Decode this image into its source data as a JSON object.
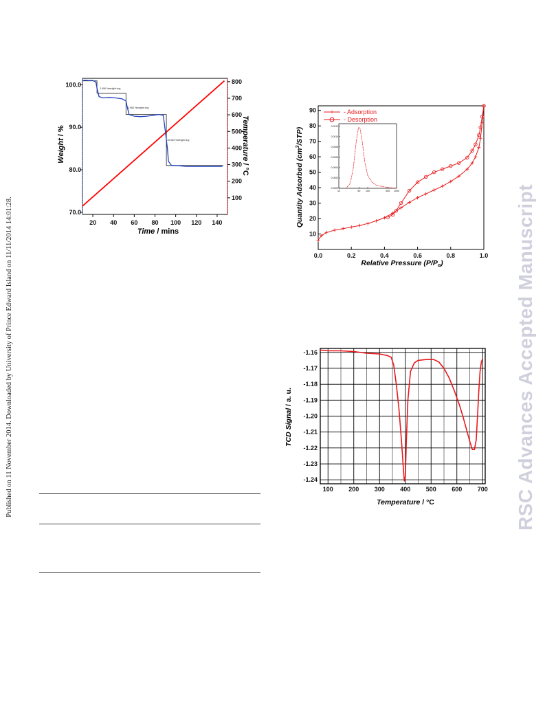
{
  "side_text": "Published on 11 November 2014. Downloaded by University of Prince Edward Island on 11/11/2014 14:01:28.",
  "watermark": "RSC Advances Accepted Manuscript",
  "chart_data": [
    {
      "type": "line",
      "xlabel_italic": "Time",
      "xlabel_rest": " / mins",
      "ylabel_italic": "Weight",
      "ylabel_rest": " / %",
      "y2label_italic": "Temperature",
      "y2label_rest": " / °C",
      "xlim": [
        10,
        150
      ],
      "ylim": [
        69.5,
        101.5
      ],
      "y2lim": [
        0,
        820
      ],
      "xticks": [
        20,
        40,
        60,
        80,
        100,
        120,
        140
      ],
      "yticks": [
        70.0,
        80.0,
        90.0,
        100.0
      ],
      "y2ticks": [
        100,
        200,
        300,
        400,
        500,
        600,
        700,
        800
      ],
      "annotations": [
        "2.906 %weight chg",
        "3.983 %weight chg",
        "10.063 %weight chg"
      ],
      "series": [
        {
          "color": "#1f3fbf",
          "x": [
            10,
            12,
            16,
            20,
            23,
            24,
            26,
            30,
            36,
            42,
            48,
            52,
            53,
            55,
            60,
            66,
            72,
            78,
            84,
            88,
            90,
            92,
            93,
            96,
            100,
            110,
            120,
            130,
            140,
            145
          ],
          "y": [
            100.9,
            101.1,
            101.0,
            101.0,
            100.6,
            99.2,
            97.2,
            96.9,
            97.0,
            96.9,
            96.7,
            96.2,
            95.0,
            93.0,
            92.6,
            92.5,
            92.6,
            92.8,
            93.0,
            92.8,
            89.0,
            85.0,
            82.0,
            81.0,
            81.0,
            80.8,
            80.8,
            80.8,
            80.8,
            80.8
          ]
        },
        {
          "color": "#222222",
          "x": [
            10,
            24,
            24,
            52,
            52,
            91,
            91,
            146
          ],
          "y": [
            100.9,
            100.9,
            98.0,
            98.0,
            93.0,
            93.0,
            81.0,
            81.0
          ]
        }
      ],
      "y2_series": {
        "color": "#ff0000",
        "x": [
          10,
          147
        ],
        "y": [
          50,
          805
        ]
      }
    },
    {
      "type": "line",
      "xlabel": "Relative Pressure (P/P",
      "xlabel_sub": "o",
      "xlabel_end": ")",
      "ylabel_pre": "Quantity Adsorbed (cm",
      "ylabel_sup": "3",
      "ylabel_post": "/STP)",
      "xlim": [
        0,
        1.0
      ],
      "ylim": [
        0,
        93
      ],
      "xticks": [
        0.0,
        0.2,
        0.4,
        0.6,
        0.8,
        1.0
      ],
      "yticks": [
        10,
        20,
        30,
        40,
        50,
        60,
        70,
        80,
        90
      ],
      "legend": [
        "- Adsorption",
        "- Desorption"
      ],
      "series": [
        {
          "color": "#e8191c",
          "x": [
            0.0,
            0.02,
            0.05,
            0.1,
            0.15,
            0.2,
            0.25,
            0.3,
            0.35,
            0.4,
            0.45,
            0.5,
            0.55,
            0.6,
            0.65,
            0.7,
            0.75,
            0.8,
            0.85,
            0.9,
            0.93,
            0.95,
            0.97,
            0.98,
            0.99,
            1.0
          ],
          "y": [
            6,
            9,
            11,
            12.5,
            13.5,
            14.5,
            15.5,
            16.8,
            18.5,
            20.5,
            23.5,
            27.0,
            30.5,
            33.5,
            36.0,
            38.5,
            41.0,
            44.0,
            47.5,
            52.0,
            56.0,
            60.0,
            66.0,
            72.0,
            82.0,
            93.0
          ]
        },
        {
          "color": "#e8191c",
          "x": [
            1.0,
            0.99,
            0.98,
            0.97,
            0.95,
            0.93,
            0.9,
            0.85,
            0.8,
            0.75,
            0.7,
            0.65,
            0.6,
            0.55,
            0.5,
            0.47,
            0.45,
            0.42
          ],
          "y": [
            93.0,
            86.0,
            79.0,
            74.0,
            68.0,
            64.0,
            59.5,
            56.0,
            54.0,
            52.0,
            50.0,
            47.0,
            43.5,
            38.0,
            30.0,
            25.0,
            22.5,
            20.8
          ]
        }
      ],
      "inset": {
        "type": "line",
        "xticks": [
          10,
          50,
          100,
          500,
          1000
        ],
        "yticks": [
          0.0,
          0.0002,
          0.0004,
          0.0006,
          0.0008,
          0.001,
          0.0012
        ],
        "ytick_labels": [
          "0.0000",
          "0.0002",
          "0.0004",
          "0.0006",
          "0.0008",
          "0.0010",
          "0.0012"
        ],
        "x": [
          18,
          25,
          32,
          40,
          48,
          55,
          65,
          80,
          100,
          140,
          200,
          350,
          600,
          1000
        ],
        "y": [
          0.0,
          0.0001,
          0.0004,
          0.0009,
          0.00118,
          0.00115,
          0.0009,
          0.0005,
          0.00025,
          0.00012,
          6e-05,
          3e-05,
          1e-05,
          0.0
        ]
      }
    },
    {
      "type": "line",
      "xlabel_italic": "Temperature",
      "xlabel_rest": " / °C",
      "ylabel_italic": "TCD Signal",
      "ylabel_rest": " / a. u.",
      "xlim": [
        70,
        710
      ],
      "ylim": [
        -1.2425,
        -1.1575
      ],
      "xticks": [
        100,
        200,
        300,
        400,
        500,
        600,
        700
      ],
      "yticks": [
        -1.16,
        -1.17,
        -1.18,
        -1.19,
        -1.2,
        -1.21,
        -1.22,
        -1.23,
        -1.24
      ],
      "ytick_labels": [
        "-1.16",
        "-1.17",
        "-1.18",
        "-1.19",
        "-1.20",
        "-1.21",
        "-1.22",
        "-1.23",
        "-1.24"
      ],
      "grid": true,
      "series": [
        {
          "color": "#e8191c",
          "x": [
            70,
            100,
            150,
            200,
            250,
            300,
            330,
            345,
            355,
            365,
            375,
            385,
            392,
            396,
            400,
            404,
            410,
            420,
            435,
            450,
            480,
            510,
            530,
            550,
            570,
            590,
            610,
            625,
            640,
            652,
            660,
            668,
            675,
            680,
            685,
            690,
            695,
            700
          ],
          "y": [
            -1.1585,
            -1.159,
            -1.159,
            -1.1595,
            -1.1605,
            -1.161,
            -1.162,
            -1.163,
            -1.168,
            -1.18,
            -1.195,
            -1.215,
            -1.232,
            -1.241,
            -1.238,
            -1.215,
            -1.19,
            -1.172,
            -1.1665,
            -1.165,
            -1.1645,
            -1.1645,
            -1.166,
            -1.17,
            -1.176,
            -1.184,
            -1.193,
            -1.201,
            -1.21,
            -1.217,
            -1.221,
            -1.221,
            -1.215,
            -1.2,
            -1.185,
            -1.172,
            -1.166,
            -1.164
          ]
        }
      ]
    }
  ],
  "colors": {
    "watermark": "#cfd0dc",
    "accent_red": "#e8191c",
    "blue": "#1f3fbf"
  }
}
